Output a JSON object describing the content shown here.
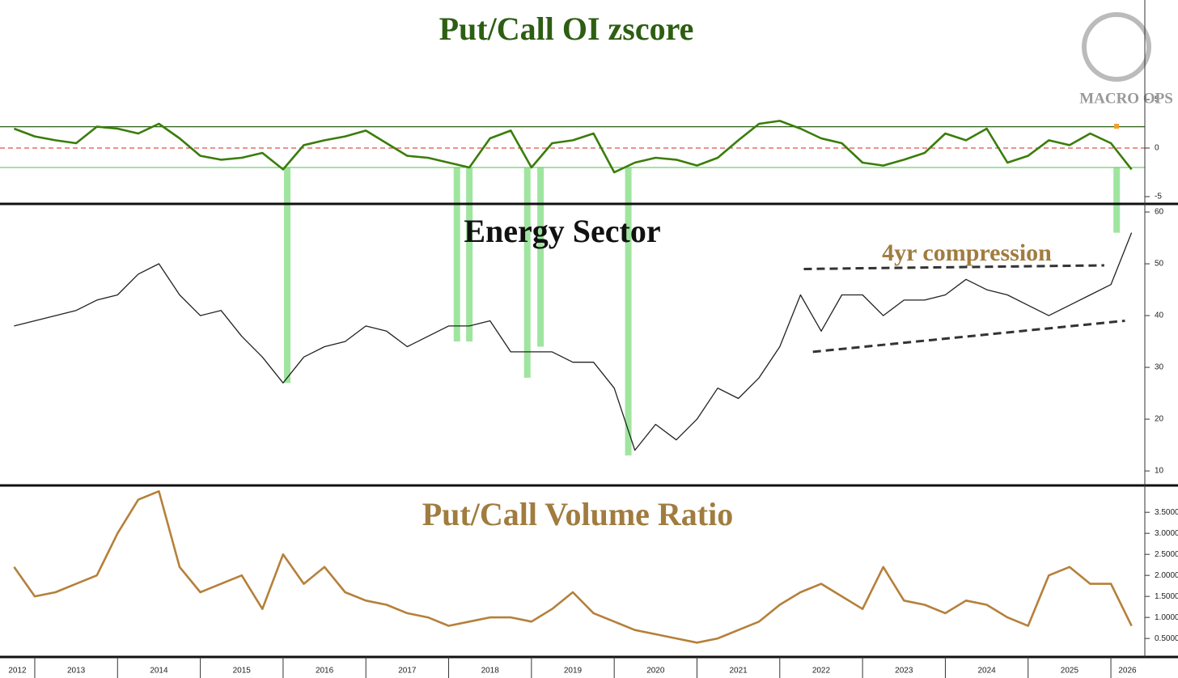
{
  "chart_data": [
    {
      "type": "line",
      "title": "Put/Call OI zscore",
      "x": [
        2012.75,
        2013,
        2013.25,
        2013.5,
        2013.75,
        2014,
        2014.25,
        2014.5,
        2014.75,
        2015,
        2015.25,
        2015.5,
        2015.75,
        2016,
        2016.25,
        2016.5,
        2016.75,
        2017,
        2017.25,
        2017.5,
        2017.75,
        2018,
        2018.25,
        2018.5,
        2018.75,
        2019,
        2019.25,
        2019.5,
        2019.75,
        2020,
        2020.25,
        2020.5,
        2020.75,
        2021,
        2021.25,
        2021.5,
        2021.75,
        2022,
        2022.25,
        2022.5,
        2022.75,
        2023,
        2023.25,
        2023.5,
        2023.75,
        2024,
        2024.25,
        2024.5,
        2024.75,
        2025,
        2025.25,
        2025.5,
        2025.75,
        2026,
        2026.25
      ],
      "series": [
        {
          "name": "Put/Call OI zscore",
          "color": "#3a7d0a",
          "values": [
            2.0,
            1.2,
            0.8,
            0.5,
            2.2,
            2.0,
            1.5,
            2.5,
            1.0,
            -0.8,
            -1.2,
            -1.0,
            -0.5,
            -2.2,
            0.3,
            0.8,
            1.2,
            1.8,
            0.5,
            -0.8,
            -1.0,
            -1.5,
            -2.0,
            1.0,
            1.8,
            -2.0,
            0.5,
            0.8,
            1.5,
            -2.5,
            -1.5,
            -1.0,
            -1.2,
            -1.8,
            -1.0,
            0.8,
            2.5,
            2.8,
            2.0,
            1.0,
            0.5,
            -1.5,
            -1.8,
            -1.2,
            -0.5,
            1.5,
            0.8,
            2.0,
            -1.5,
            -0.8,
            0.8,
            0.3,
            1.5,
            0.5,
            -2.2
          ]
        }
      ],
      "ylim": [
        -5.75,
        15.25
      ],
      "yticks": [
        -5,
        0,
        5
      ],
      "hlines": [
        {
          "value": 2.2,
          "color": "#2b5e1a",
          "dash": false
        },
        {
          "value": 0,
          "color": "#d9534f",
          "dash": true
        },
        {
          "value": -2,
          "color": "#6fcf6f",
          "dash": false
        }
      ],
      "highlights": [
        {
          "x": 2016.05,
          "low": 27
        },
        {
          "x": 2018.1,
          "low": 35
        },
        {
          "x": 2018.25,
          "low": 35
        },
        {
          "x": 2018.95,
          "low": 28
        },
        {
          "x": 2019.11,
          "low": 34
        },
        {
          "x": 2020.17,
          "low": 13
        },
        {
          "x": 2026.07,
          "low": 56
        }
      ],
      "logo": "MACRO OPS"
    },
    {
      "type": "line",
      "title": "Energy Sector",
      "annotation": "4yr compression",
      "x": [
        2012.75,
        2013,
        2013.25,
        2013.5,
        2013.75,
        2014,
        2014.25,
        2014.5,
        2014.75,
        2015,
        2015.25,
        2015.5,
        2015.75,
        2016,
        2016.25,
        2016.5,
        2016.75,
        2017,
        2017.25,
        2017.5,
        2017.75,
        2018,
        2018.25,
        2018.5,
        2018.75,
        2019,
        2019.25,
        2019.5,
        2019.75,
        2020,
        2020.25,
        2020.5,
        2020.75,
        2021,
        2021.25,
        2021.5,
        2021.75,
        2022,
        2022.25,
        2022.5,
        2022.75,
        2023,
        2023.25,
        2023.5,
        2023.75,
        2024,
        2024.25,
        2024.5,
        2024.75,
        2025,
        2025.25,
        2025.5,
        2025.75,
        2026,
        2026.25
      ],
      "series": [
        {
          "name": "Energy Sector",
          "color": "#222222",
          "values": [
            38,
            39,
            40,
            41,
            43,
            44,
            48,
            50,
            44,
            40,
            41,
            36,
            32,
            27,
            32,
            34,
            35,
            38,
            37,
            34,
            36,
            38,
            38,
            39,
            33,
            33,
            33,
            31,
            31,
            26,
            14,
            19,
            16,
            20,
            26,
            24,
            28,
            34,
            44,
            37,
            44,
            44,
            40,
            43,
            43,
            44,
            47,
            45,
            44,
            42,
            40,
            42,
            44,
            46,
            56
          ]
        }
      ],
      "ylim": [
        7.2,
        61.1
      ],
      "yticks": [
        10,
        20,
        30,
        40,
        50,
        60
      ],
      "trendlines": [
        {
          "x": [
            2022.29,
            2025.92
          ],
          "y": [
            49,
            49.7
          ]
        },
        {
          "x": [
            2022.4,
            2026.17
          ],
          "y": [
            33,
            39
          ]
        }
      ]
    },
    {
      "type": "line",
      "title": "Put/Call Volume Ratio",
      "x": [
        2012.75,
        2013,
        2013.25,
        2013.5,
        2013.75,
        2014,
        2014.25,
        2014.5,
        2014.75,
        2015,
        2015.25,
        2015.5,
        2015.75,
        2016,
        2016.25,
        2016.5,
        2016.75,
        2017,
        2017.25,
        2017.5,
        2017.75,
        2018,
        2018.25,
        2018.5,
        2018.75,
        2019,
        2019.25,
        2019.5,
        2019.75,
        2020,
        2020.25,
        2020.5,
        2020.75,
        2021,
        2021.25,
        2021.5,
        2021.75,
        2022,
        2022.25,
        2022.5,
        2022.75,
        2023,
        2023.25,
        2023.5,
        2023.75,
        2024,
        2024.25,
        2024.5,
        2024.75,
        2025,
        2025.25,
        2025.5,
        2025.75,
        2026,
        2026.25
      ],
      "series": [
        {
          "name": "Put/Call Volume Ratio",
          "color": "#b5803a",
          "values": [
            2.2,
            1.5,
            1.6,
            1.8,
            2.0,
            3.0,
            3.8,
            4.0,
            2.2,
            1.6,
            1.8,
            2.0,
            1.2,
            2.5,
            1.8,
            2.2,
            1.6,
            1.4,
            1.3,
            1.1,
            1.0,
            0.8,
            0.9,
            1.0,
            1.0,
            0.9,
            1.2,
            1.6,
            1.1,
            0.9,
            0.7,
            0.6,
            0.5,
            0.4,
            0.5,
            0.7,
            0.9,
            1.3,
            1.6,
            1.8,
            1.5,
            1.2,
            2.2,
            1.4,
            1.3,
            1.1,
            1.4,
            1.3,
            1.0,
            0.8,
            2.0,
            2.2,
            1.8,
            1.8,
            0.8
          ]
        }
      ],
      "ylim": [
        0.06,
        4.1
      ],
      "yticks": [
        {
          "value": 0.5,
          "label": "0.5000"
        },
        {
          "value": 1,
          "label": "1.0000"
        },
        {
          "value": 1.5,
          "label": "1.5000"
        },
        {
          "value": 2,
          "label": "2.0000"
        },
        {
          "value": 2.5,
          "label": "2.5000"
        },
        {
          "value": 3,
          "label": "3.0000"
        },
        {
          "value": 3.5,
          "label": "3.5000"
        }
      ],
      "xlim": [
        2012.58,
        2026.41
      ],
      "xdividers": [
        2013,
        2014,
        2015,
        2016,
        2017,
        2018,
        2019,
        2020,
        2021,
        2022,
        2023,
        2024,
        2025,
        2026
      ],
      "xticks": [
        {
          "value": 2012.79,
          "label": "2012"
        },
        {
          "value": 2013.5,
          "label": "2013"
        },
        {
          "value": 2014.5,
          "label": "2014"
        },
        {
          "value": 2015.5,
          "label": "2015"
        },
        {
          "value": 2016.5,
          "label": "2016"
        },
        {
          "value": 2017.5,
          "label": "2017"
        },
        {
          "value": 2018.5,
          "label": "2018"
        },
        {
          "value": 2019.5,
          "label": "2019"
        },
        {
          "value": 2020.5,
          "label": "2020"
        },
        {
          "value": 2021.5,
          "label": "2021"
        },
        {
          "value": 2022.5,
          "label": "2022"
        },
        {
          "value": 2023.5,
          "label": "2023"
        },
        {
          "value": 2024.5,
          "label": "2024"
        },
        {
          "value": 2025.5,
          "label": "2025"
        },
        {
          "value": 2026.2,
          "label": "2026"
        }
      ]
    }
  ]
}
